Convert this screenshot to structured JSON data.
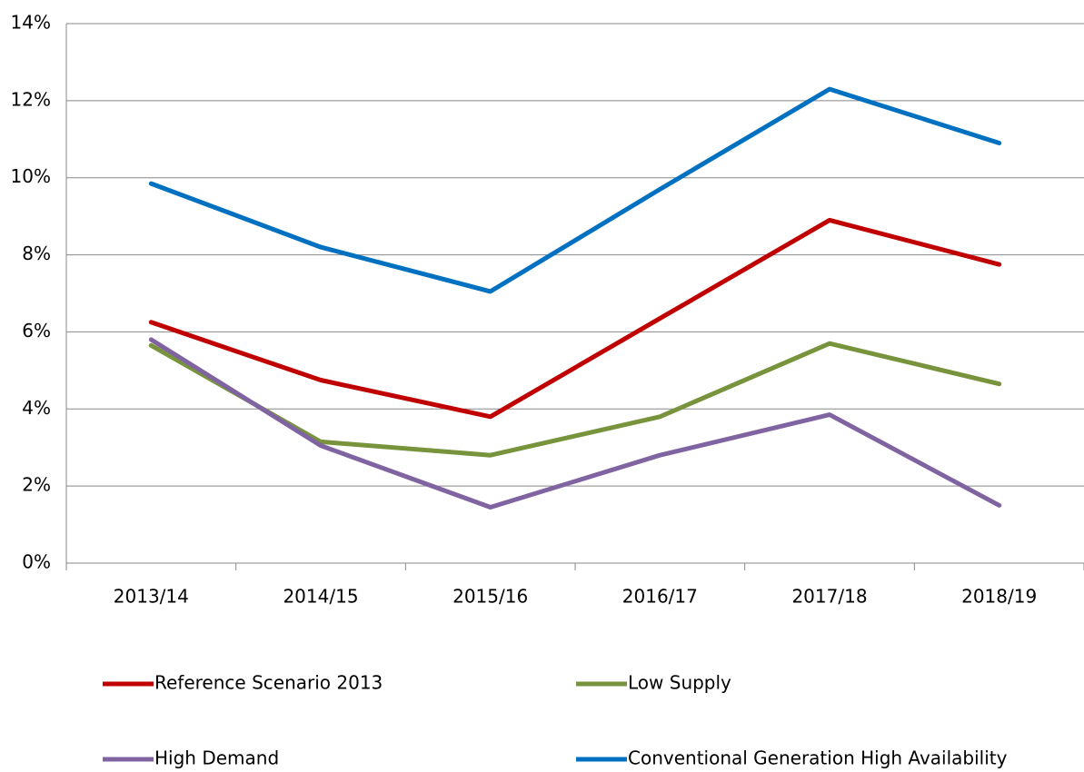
{
  "chart_data": {
    "type": "line",
    "categories": [
      "2013/14",
      "2014/15",
      "2015/16",
      "2016/17",
      "2017/18",
      "2018/19"
    ],
    "series": [
      {
        "name": "Reference Scenario 2013",
        "color": "#c00000",
        "values": [
          6.25,
          4.75,
          3.8,
          6.35,
          8.9,
          7.75
        ]
      },
      {
        "name": "Low Supply",
        "color": "#77933c",
        "values": [
          5.65,
          3.15,
          2.8,
          3.8,
          5.7,
          4.65
        ]
      },
      {
        "name": "High Demand",
        "color": "#8064a2",
        "values": [
          5.8,
          3.05,
          1.45,
          2.8,
          3.85,
          1.5
        ]
      },
      {
        "name": "Conventional Generation High Availability",
        "color": "#0070c0",
        "values": [
          9.85,
          8.2,
          7.05,
          9.7,
          12.3,
          10.9
        ]
      }
    ],
    "ylim": [
      0,
      14
    ],
    "yticks": [
      {
        "value": 0,
        "label": "0%"
      },
      {
        "value": 2,
        "label": "2%"
      },
      {
        "value": 4,
        "label": "4%"
      },
      {
        "value": 6,
        "label": "6%"
      },
      {
        "value": 8,
        "label": "8%"
      },
      {
        "value": 10,
        "label": "10%"
      },
      {
        "value": 12,
        "label": "12%"
      },
      {
        "value": 14,
        "label": "14%"
      }
    ],
    "grid": true,
    "legend": "bottom"
  }
}
